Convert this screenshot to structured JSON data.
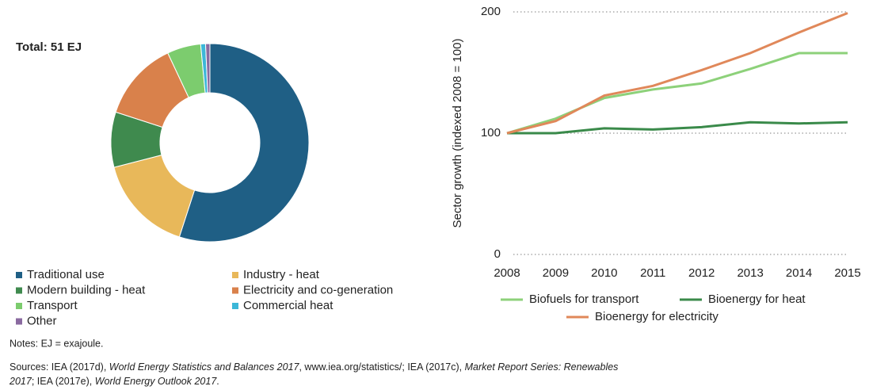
{
  "chart_data": [
    {
      "type": "donut",
      "title": "Total: 51 EJ",
      "categories": [
        "Traditional use",
        "Industry - heat",
        "Modern building - heat",
        "Electricity and co-generation",
        "Transport",
        "Commercial heat",
        "Other"
      ],
      "values": [
        55,
        16,
        9,
        13,
        5.5,
        0.8,
        0.7
      ],
      "colors": [
        "#1f5f85",
        "#e8b85a",
        "#3f8a4e",
        "#d9814b",
        "#7ccc6e",
        "#3cb7d8",
        "#8a6aa0"
      ]
    },
    {
      "type": "line",
      "y_label": "Sector growth (indexed 2008 = 100)",
      "x": [
        2008,
        2009,
        2010,
        2011,
        2012,
        2013,
        2014,
        2015
      ],
      "xlim": [
        2008,
        2015
      ],
      "xticks": [
        2008,
        2009,
        2010,
        2011,
        2012,
        2013,
        2014,
        2015
      ],
      "ylim": [
        0,
        200
      ],
      "yticks": [
        0,
        100,
        200
      ],
      "grid": true,
      "series": [
        {
          "name": "Biofuels for transport",
          "color": "#8dd17a",
          "values": [
            100,
            112,
            129,
            136,
            141,
            153,
            166,
            166
          ]
        },
        {
          "name": "Bioenergy for heat",
          "color": "#3a8a4a",
          "values": [
            100,
            100,
            104,
            103,
            105,
            109,
            108,
            109
          ]
        },
        {
          "name": "Bioenergy for electricity",
          "color": "#e0885a",
          "values": [
            100,
            110,
            131,
            139,
            152,
            166,
            183,
            199
          ]
        }
      ]
    }
  ],
  "notes": "Notes: EJ = exajoule.",
  "sources": [
    [
      "Sources: IEA (2017d), ",
      "World Energy Statistics and Balances 2017",
      ", www.iea.org/statistics/; IEA (2017c), ",
      "Market Report Series: Renewables"
    ],
    [
      "2017",
      "; IEA (2017e), ",
      "World Energy Outlook 2017",
      "."
    ]
  ]
}
